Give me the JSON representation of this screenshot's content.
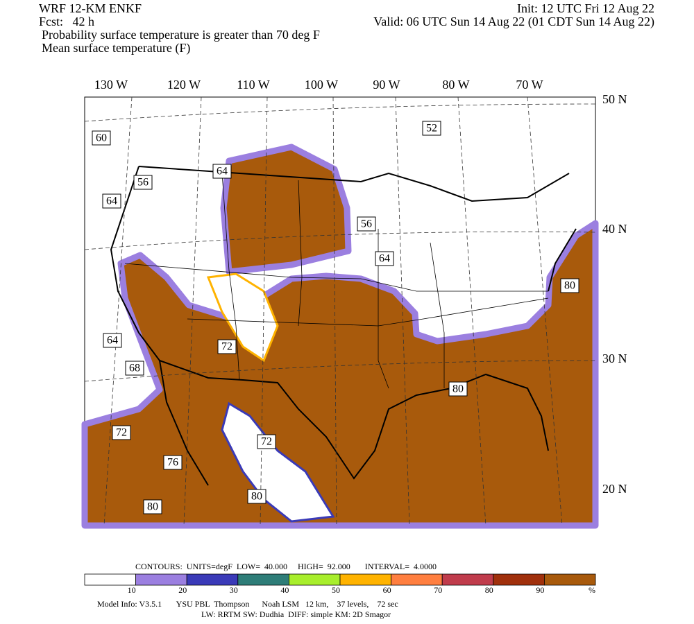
{
  "header": {
    "model": "WRF 12-KM ENKF",
    "init": "Init: 12 UTC Fri 12 Aug 22",
    "fcst": "Fcst:   42 h",
    "valid": "Valid: 06 UTC Sun 14 Aug 22 (01 CDT Sun 14 Aug 22)",
    "line1": "Probability surface temperature is greater than 70 deg F",
    "line2": "Mean surface temperature (F)"
  },
  "map": {
    "lon_labels": [
      "130 W",
      "120 W",
      "110 W",
      "100 W",
      "90 W",
      "80 W",
      "70 W"
    ],
    "lat_labels": [
      "50 N",
      "40 N",
      "30 N",
      "20 N"
    ],
    "contour_labels": [
      "60",
      "52",
      "56",
      "64",
      "64",
      "56",
      "64",
      "80",
      "64",
      "68",
      "72",
      "72",
      "76",
      "80",
      "80",
      "80",
      "72"
    ]
  },
  "colorbar": {
    "contours": "CONTOURS:  UNITS=degF  LOW=  40.000     HIGH=  92.000       INTERVAL=  4.0000",
    "colors": [
      "#ffffff",
      "#9b7fe0",
      "#3a3ab8",
      "#2e7d78",
      "#a8ee2c",
      "#ffb300",
      "#ff7f40",
      "#c03c4c",
      "#a0300c",
      "#a85a0c"
    ],
    "ticks": [
      10,
      20,
      30,
      40,
      50,
      60,
      70,
      80,
      90
    ],
    "unit": "%"
  },
  "footer": {
    "line1": "Model Info: V3.5.1       YSU PBL  Thompson      Noah LSM   12 km,    37 levels,    72 sec",
    "line2": "LW: RRTM SW: Dudhia  DIFF: simple KM: 2D Smagor"
  }
}
